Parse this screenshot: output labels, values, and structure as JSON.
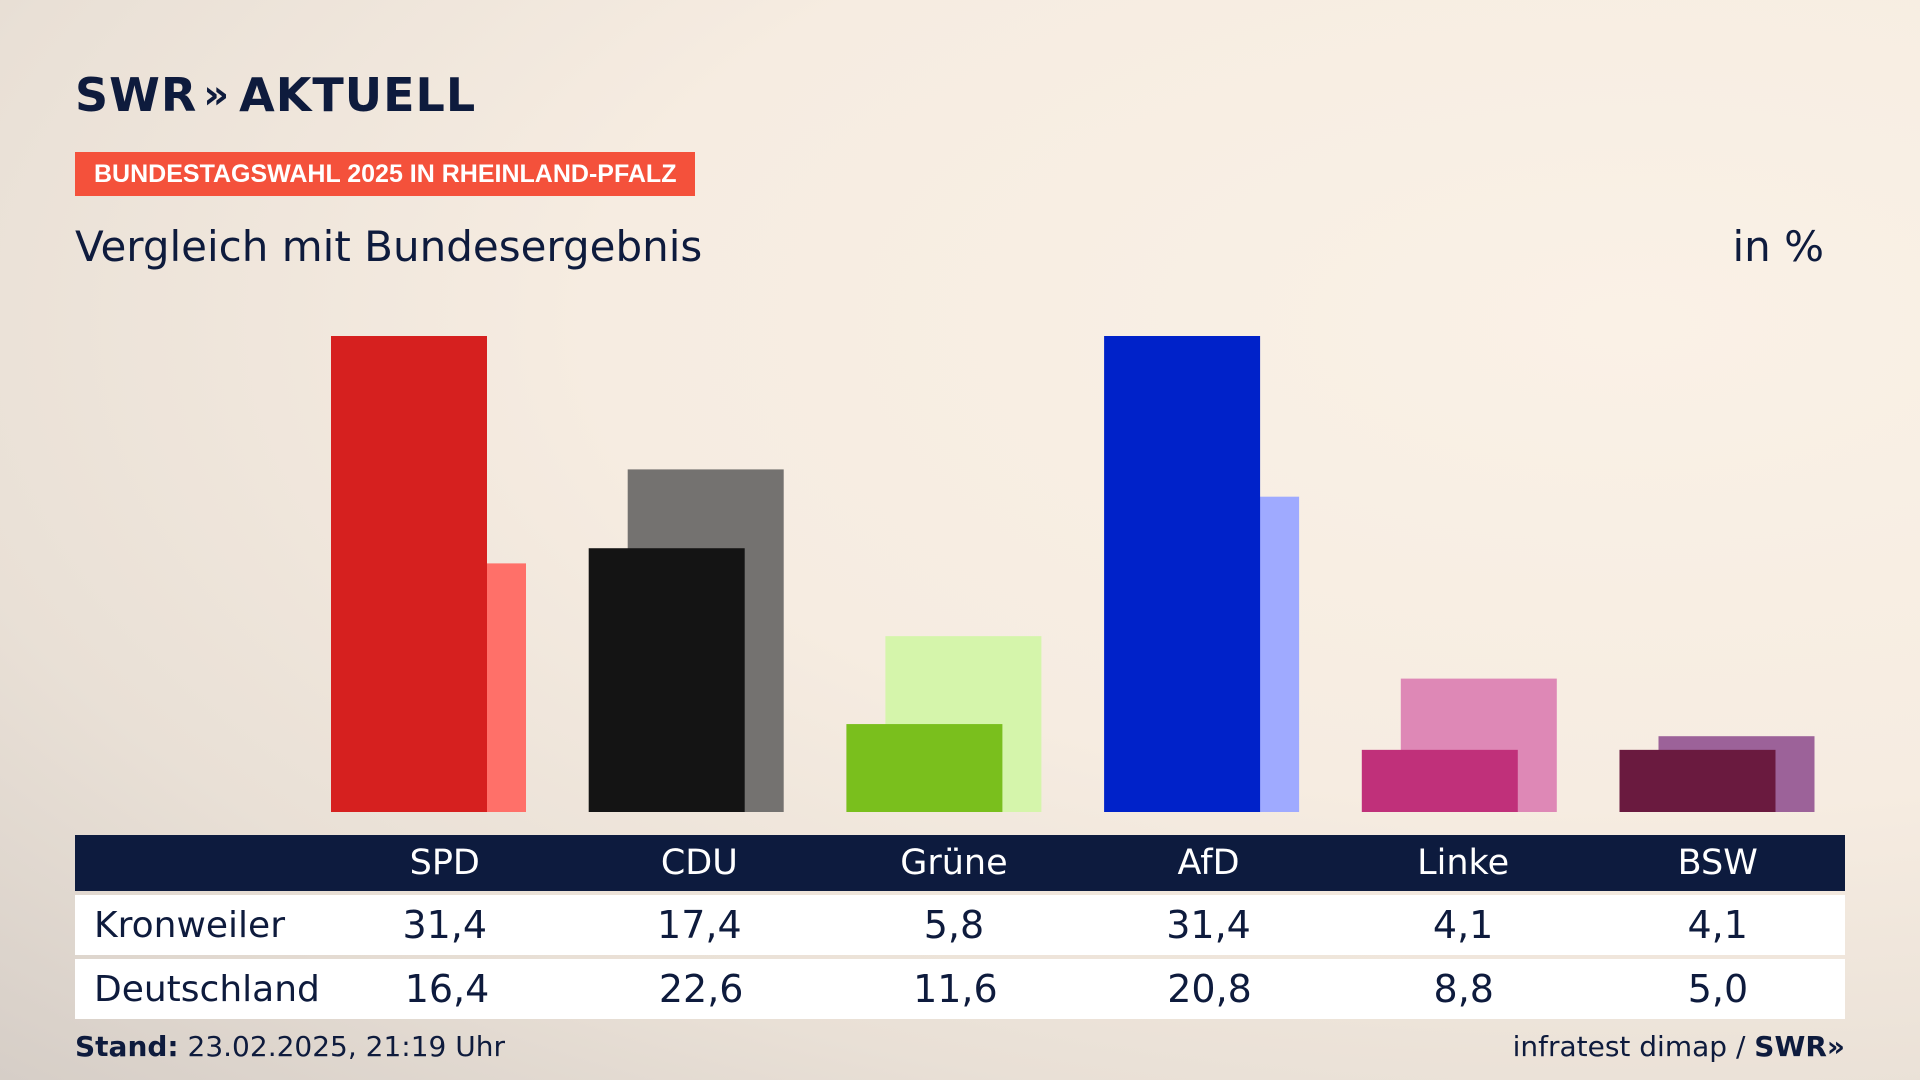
{
  "header": {
    "logo_text": "SWR",
    "logo_chevrons": "»",
    "logo_suffix": "AKTUELL",
    "tag": "BUNDESTAGSWAHL 2025 IN RHEINLAND-PFALZ",
    "subtitle": "Vergleich mit Bundesergebnis",
    "unit": "in %"
  },
  "footer": {
    "stand_label": "Stand:",
    "stand_value": "23.02.2025, 21:19 Uhr",
    "source": "infratest dimap /",
    "source_logo": "SWR»"
  },
  "chart_data": {
    "type": "bar",
    "title": "Vergleich mit Bundesergebnis",
    "unit": "in %",
    "categories": [
      "SPD",
      "CDU",
      "Grüne",
      "AfD",
      "Linke",
      "BSW"
    ],
    "series": [
      {
        "name": "Kronweiler",
        "values": [
          31.4,
          17.4,
          5.8,
          31.4,
          4.1,
          4.1
        ],
        "display": [
          "31,4",
          "17,4",
          "5,8",
          "31,4",
          "4,1",
          "4,1"
        ],
        "colors": [
          "#d6201f",
          "#141414",
          "#7abf1d",
          "#0022c9",
          "#c0307a",
          "#6a1a3f"
        ]
      },
      {
        "name": "Deutschland",
        "values": [
          16.4,
          22.6,
          11.6,
          20.8,
          8.8,
          5.0
        ],
        "display": [
          "16,4",
          "22,6",
          "11,6",
          "20,8",
          "8,8",
          "5,0"
        ],
        "colors": [
          "#ff7069",
          "#747270",
          "#d5f5ab",
          "#9faaff",
          "#de88b6",
          "#9c6299"
        ]
      }
    ],
    "ylim": [
      0,
      31.4
    ]
  }
}
